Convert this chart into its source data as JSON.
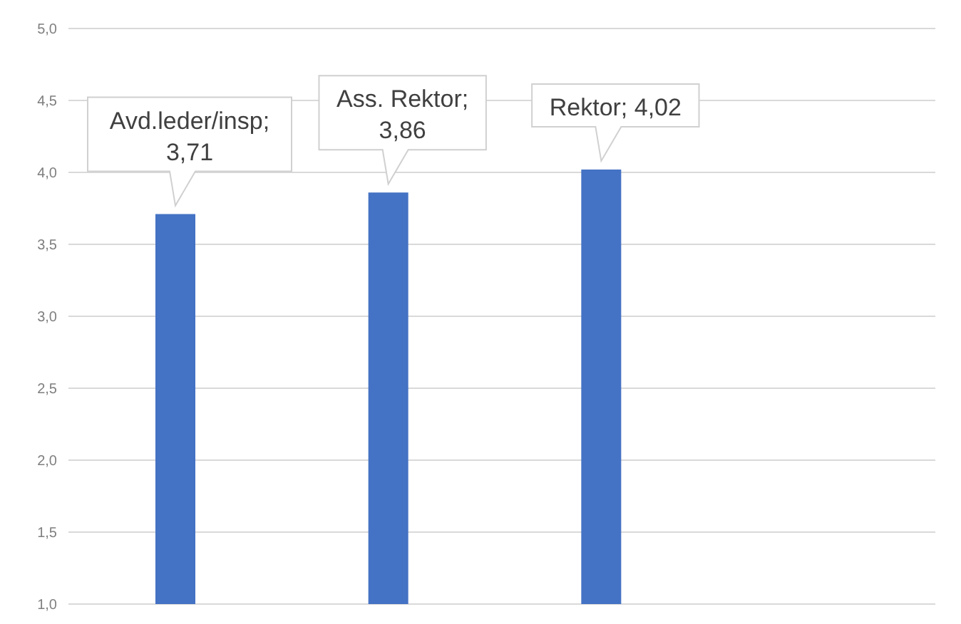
{
  "chart_data": {
    "type": "bar",
    "categories": [
      null,
      null,
      null
    ],
    "values": [
      3.71,
      3.86,
      4.02
    ],
    "value_labels": [
      "Avd.leder/insp; 3,71",
      "Ass. Rektor; 3,86",
      "Rektor; 4,02"
    ],
    "color": "#4472c4",
    "ylim": [
      1,
      5
    ],
    "yticks": [
      {
        "value": 1,
        "label": "1,0"
      },
      {
        "value": 1.5,
        "label": "1,5"
      },
      {
        "value": 2,
        "label": "2,0"
      },
      {
        "value": 2.5,
        "label": "2,5"
      },
      {
        "value": 3,
        "label": "3,0"
      },
      {
        "value": 3.5,
        "label": "3,5"
      },
      {
        "value": 4,
        "label": "4,0"
      },
      {
        "value": 4.5,
        "label": "4,5"
      },
      {
        "value": 5,
        "label": "5,0"
      }
    ],
    "grid": "y",
    "legend": false
  }
}
